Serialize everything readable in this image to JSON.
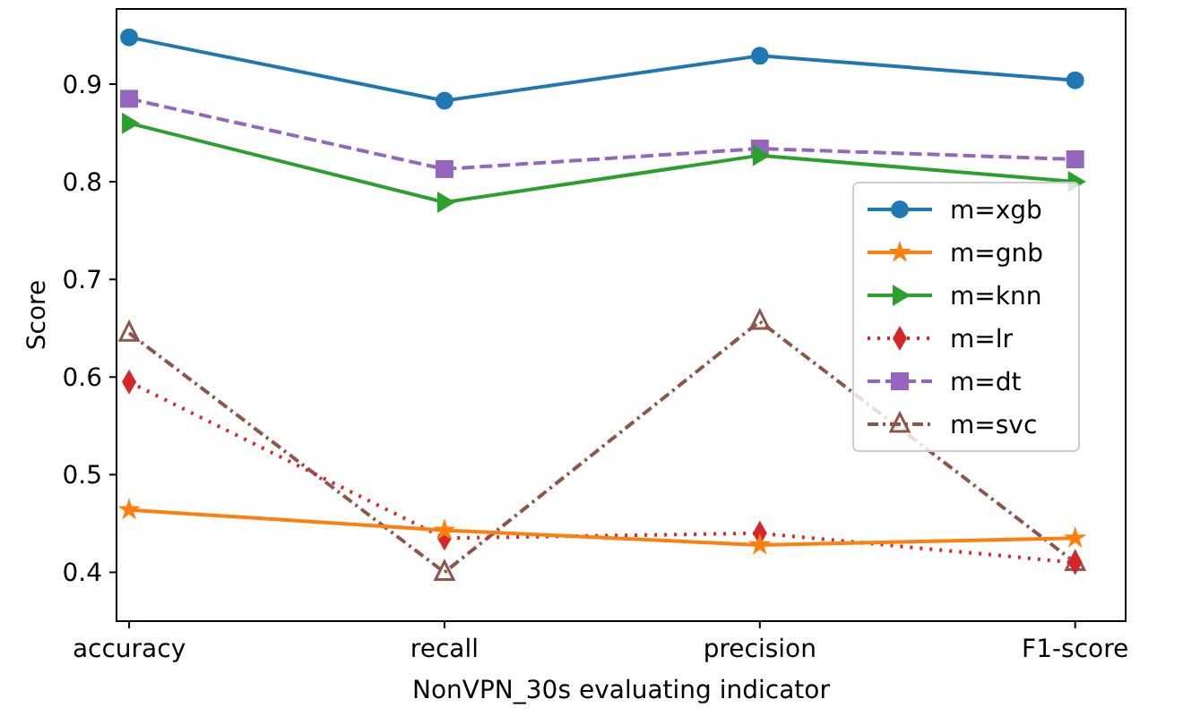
{
  "chart_data": {
    "type": "line",
    "xlabel": "NonVPN_30s evaluating indicator",
    "ylabel": "Score",
    "categories": [
      "accuracy",
      "recall",
      "precision",
      "F1-score"
    ],
    "ylim": [
      0.35,
      0.977
    ],
    "yticks": [
      0.4,
      0.5,
      0.6,
      0.7,
      0.8,
      0.9
    ],
    "legend": "right",
    "grid": false,
    "series": [
      {
        "name": "m=xgb",
        "color": "#1f77b4",
        "marker": "circle",
        "line_style": "solid",
        "values": [
          0.948,
          0.883,
          0.929,
          0.904
        ]
      },
      {
        "name": "m=gnb",
        "color": "#ff7f0e",
        "marker": "star",
        "line_style": "solid",
        "values": [
          0.464,
          0.443,
          0.428,
          0.435
        ]
      },
      {
        "name": "m=knn",
        "color": "#2ca02c",
        "marker": "triangle-right",
        "line_style": "solid",
        "values": [
          0.86,
          0.779,
          0.827,
          0.8
        ]
      },
      {
        "name": "m=lr",
        "color": "#d62728",
        "marker": "diamond",
        "line_style": "dotted",
        "values": [
          0.595,
          0.435,
          0.44,
          0.41
        ]
      },
      {
        "name": "m=dt",
        "color": "#9467bd",
        "marker": "square",
        "line_style": "dashed",
        "values": [
          0.885,
          0.813,
          0.834,
          0.823
        ]
      },
      {
        "name": "m=svc",
        "color": "#8c564b",
        "marker": "triangle",
        "line_style": "dashdot",
        "values": [
          0.645,
          0.4,
          0.657,
          0.41
        ]
      }
    ]
  }
}
